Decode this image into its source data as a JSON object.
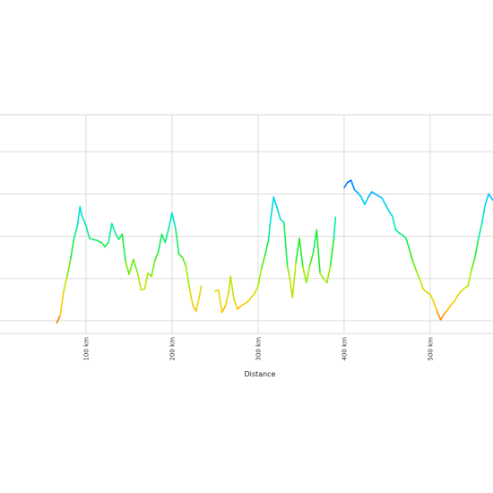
{
  "chart_data": {
    "type": "line",
    "title": "",
    "xlabel": "Distance",
    "ylabel": "",
    "xlim": [
      0,
      573
    ],
    "ylim": [
      -120,
      1950
    ],
    "x_unit": "km",
    "x_ticks": [
      100,
      200,
      300,
      400,
      500
    ],
    "x_tick_labels": [
      "100 km",
      "200 km",
      "300 km",
      "400 km",
      "500 km"
    ],
    "y_gridlines": [
      0,
      400,
      800,
      1200,
      1600
    ],
    "grid": true,
    "legend": "none",
    "color_scale": {
      "min": -100,
      "max": 1900,
      "stops": [
        "#ff3300",
        "#ffcc00",
        "#aaee00",
        "#22ee22",
        "#00eebb",
        "#00ccff",
        "#0044ff",
        "#aa00ff",
        "#ee00ff"
      ]
    },
    "segments": [
      {
        "x": [
          66,
          70,
          74,
          78,
          82,
          86,
          90,
          93,
          95,
          100,
          104,
          108,
          113,
          118,
          122,
          126,
          130,
          134,
          138,
          142,
          146,
          150,
          155,
          160,
          164,
          168,
          172,
          176,
          180,
          184,
          188,
          192,
          196,
          200,
          204,
          208,
          212,
          216,
          220,
          224,
          228,
          232,
          234
        ],
        "y": [
          -20,
          50,
          280,
          420,
          580,
          780,
          900,
          1080,
          1000,
          900,
          780,
          770,
          760,
          740,
          700,
          740,
          920,
          830,
          770,
          820,
          560,
          440,
          580,
          450,
          290,
          300,
          450,
          420,
          570,
          650,
          820,
          740,
          870,
          1020,
          880,
          630,
          600,
          520,
          320,
          150,
          90,
          240,
          330
        ]
      },
      {
        "x": [
          250,
          254,
          258,
          262,
          266,
          268,
          272,
          276,
          280,
          284,
          288,
          292,
          296,
          300,
          304,
          308,
          312,
          314,
          318,
          322,
          326,
          330,
          334,
          336,
          340,
          344,
          348,
          352,
          356,
          360,
          364,
          368,
          372,
          376,
          380,
          384,
          388,
          390
        ],
        "y": [
          280,
          290,
          80,
          140,
          280,
          420,
          200,
          110,
          140,
          160,
          180,
          220,
          260,
          330,
          500,
          620,
          760,
          920,
          1170,
          1070,
          960,
          930,
          520,
          440,
          220,
          560,
          780,
          510,
          360,
          520,
          640,
          860,
          450,
          400,
          360,
          520,
          780,
          980
        ]
      },
      {
        "x": [
          400,
          404,
          408,
          412,
          416,
          420,
          424,
          428,
          432,
          436,
          440,
          444,
          448,
          452,
          456,
          460,
          464,
          468,
          472,
          476,
          480,
          484,
          488,
          492,
          496,
          500,
          504,
          508,
          512,
          516,
          520,
          524,
          528,
          532,
          536,
          540,
          544,
          548,
          552,
          556,
          560,
          564,
          568,
          573
        ],
        "y": [
          1260,
          1310,
          1330,
          1240,
          1210,
          1170,
          1100,
          1170,
          1220,
          1200,
          1180,
          1160,
          1100,
          1040,
          990,
          860,
          830,
          810,
          780,
          670,
          560,
          470,
          390,
          300,
          270,
          250,
          180,
          90,
          10,
          60,
          100,
          150,
          180,
          240,
          280,
          310,
          330,
          480,
          600,
          770,
          920,
          1100,
          1200,
          1140
        ]
      }
    ]
  }
}
